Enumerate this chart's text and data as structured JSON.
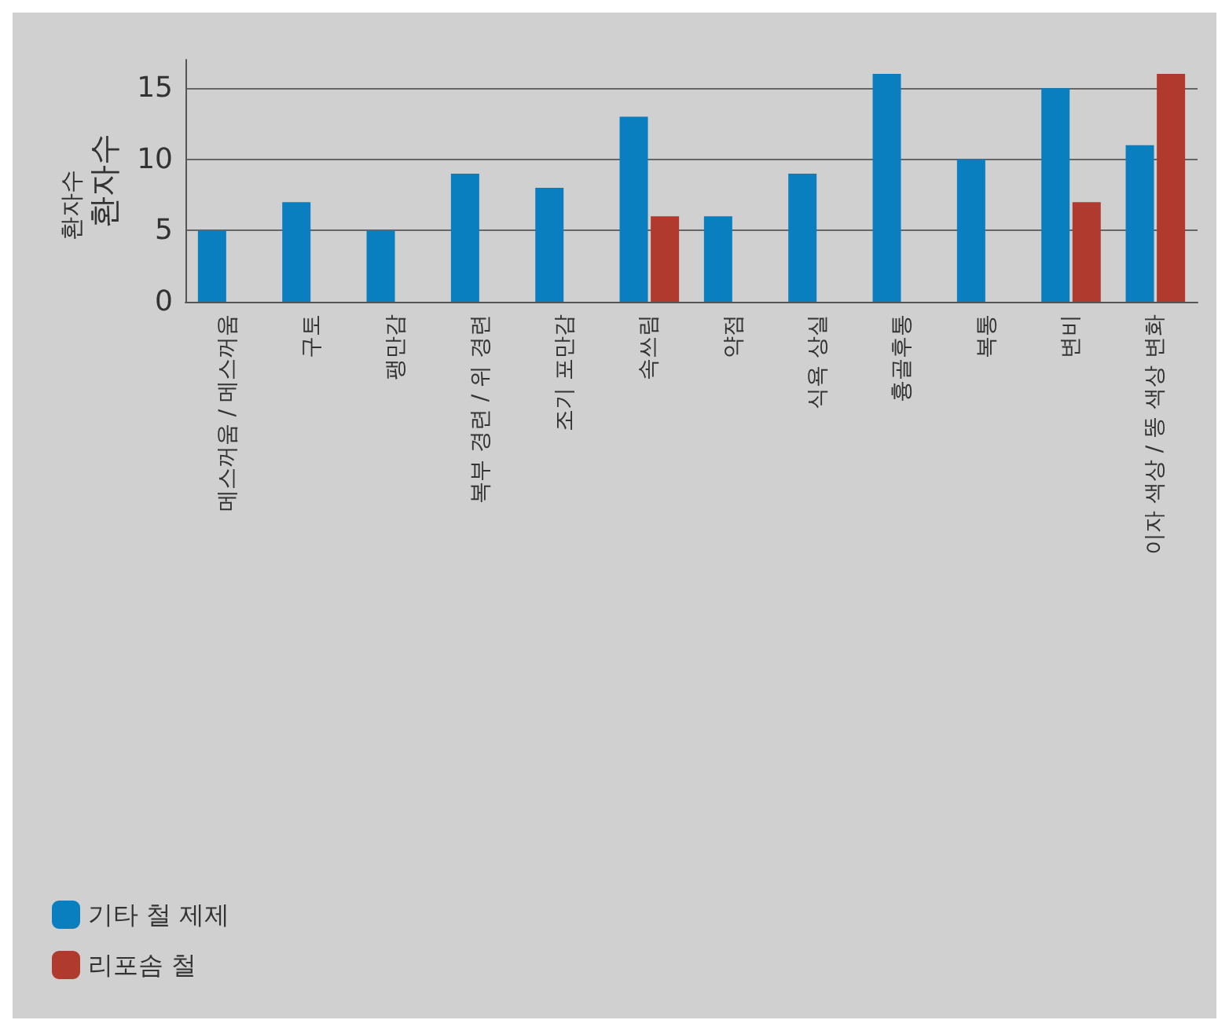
{
  "chart_data": {
    "type": "bar",
    "ylabel": "환자수",
    "annotations": [
      "환자수"
    ],
    "categories": [
      "메스꺼움 / 메스꺼움",
      "구토",
      "팽만감",
      "복부 경련 / 위 경련",
      "조기 포만감",
      "속쓰림",
      "약점",
      "식욕 상실",
      "흉골후통",
      "복통",
      "변비",
      "이자 색상 / 똥 색상 변화"
    ],
    "series": [
      {
        "name": "기타 철 제제",
        "color": "#0a7fc0",
        "values": [
          5,
          7,
          5,
          9,
          8,
          13,
          6,
          9,
          16,
          10,
          15,
          11
        ]
      },
      {
        "name": "리포솜 철",
        "color": "#b03a2e",
        "values": [
          null,
          null,
          null,
          null,
          null,
          6,
          null,
          null,
          null,
          null,
          7,
          16
        ]
      }
    ],
    "ylim": [
      0,
      17
    ],
    "yticks": [
      0,
      5,
      10,
      15
    ],
    "grid": "y",
    "legend": "bottom left"
  }
}
